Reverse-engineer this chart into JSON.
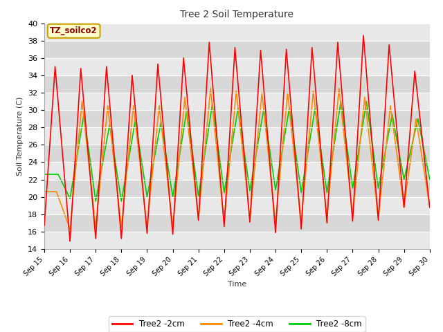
{
  "title": "Tree 2 Soil Temperature",
  "xlabel": "Time",
  "ylabel": "Soil Temperature (C)",
  "ylim": [
    14,
    40
  ],
  "x_tick_labels": [
    "Sep 15",
    "Sep 16",
    "Sep 17",
    "Sep 18",
    "Sep 19",
    "Sep 20",
    "Sep 21",
    "Sep 22",
    "Sep 23",
    "Sep 24",
    "Sep 25",
    "Sep 26",
    "Sep 27",
    "Sep 28",
    "Sep 29",
    "Sep 30"
  ],
  "fig_bg_color": "#ffffff",
  "plot_bg_color": "#f0f0f0",
  "band_color_light": "#e8e8e8",
  "band_color_dark": "#d8d8d8",
  "annotation_text": "TZ_soilco2",
  "annotation_bg": "#ffffcc",
  "annotation_border": "#c8a000",
  "annotation_text_color": "#8b0000",
  "legend_labels": [
    "Tree2 -2cm",
    "Tree2 -4cm",
    "Tree2 -8cm"
  ],
  "legend_colors": [
    "#ff0000",
    "#ff8800",
    "#00cc00"
  ],
  "line_width": 1.2,
  "series_2cm_peaks": [
    35.0,
    34.8,
    35.0,
    34.0,
    35.3,
    36.0,
    37.8,
    37.2,
    36.9,
    37.0,
    37.2,
    37.8,
    38.6,
    37.5,
    34.5
  ],
  "series_2cm_troughs": [
    16.7,
    14.9,
    15.2,
    15.2,
    15.8,
    15.7,
    17.3,
    16.6,
    17.1,
    15.9,
    16.3,
    17.0,
    17.2,
    17.3,
    18.8
  ],
  "series_4cm_peaks": [
    20.6,
    31.0,
    30.5,
    30.5,
    30.5,
    31.5,
    32.5,
    32.2,
    32.0,
    32.0,
    32.2,
    32.5,
    31.5,
    30.5,
    29.0
  ],
  "series_4cm_troughs": [
    20.6,
    16.3,
    16.5,
    16.5,
    16.5,
    16.5,
    17.5,
    17.0,
    17.5,
    17.0,
    17.2,
    17.8,
    17.8,
    17.5,
    18.8
  ],
  "series_8cm_peaks": [
    22.6,
    29.5,
    28.3,
    28.8,
    28.6,
    29.9,
    30.7,
    30.2,
    30.1,
    30.3,
    30.2,
    31.0,
    31.0,
    29.5,
    29.0
  ],
  "series_8cm_troughs": [
    22.6,
    19.8,
    19.5,
    19.5,
    20.0,
    20.0,
    20.1,
    20.5,
    20.7,
    20.8,
    20.5,
    20.5,
    21.0,
    21.0,
    22.0
  ],
  "n_days": 15
}
